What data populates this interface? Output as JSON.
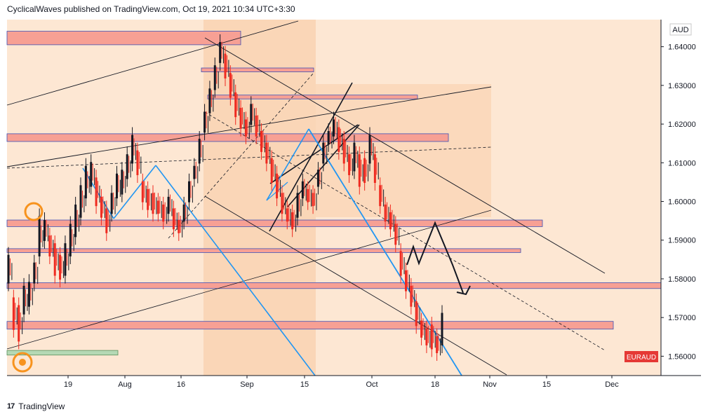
{
  "header": {
    "publisher": "CyclicalWaves published on TradingView.com, Oct 19, 2021 10:34 UTC+3:30"
  },
  "footer": {
    "brand": "TradingView"
  },
  "colors": {
    "bg_chart": "#fde7d3",
    "zone_fill": "#f8c8a0",
    "box_red": "#f7a094",
    "box_red_border": "#3f51b5",
    "box_green": "#b5d9b5",
    "candle_up": "#131722",
    "candle_down": "#ef2a20",
    "blue_line": "#2196f3",
    "orange_circle": "#f7931e",
    "symbol_badge": "#e53935"
  },
  "chart_data": {
    "type": "candlestick",
    "currency_label": "AUD",
    "symbol_badge": "EURAUD",
    "y_axis": {
      "min": 1.555,
      "max": 1.647,
      "ticks": [
        "1.64000",
        "1.63000",
        "1.62000",
        "1.61000",
        "1.60000",
        "1.59000",
        "1.58000",
        "1.57000",
        "1.56000"
      ]
    },
    "x_axis": {
      "ticks": [
        "19",
        "Aug",
        "16",
        "Sep",
        "15",
        "Oct",
        "18",
        "Nov",
        "15",
        "Dec"
      ]
    },
    "price_path": [
      [
        1.587,
        1.578
      ],
      [
        1.576,
        1.566
      ],
      [
        1.574,
        1.563
      ],
      [
        1.579,
        1.57
      ],
      [
        1.58,
        1.572
      ],
      [
        1.585,
        1.578
      ],
      [
        1.597,
        1.585
      ],
      [
        1.596,
        1.589
      ],
      [
        1.592,
        1.585
      ],
      [
        1.59,
        1.58
      ],
      [
        1.587,
        1.579
      ],
      [
        1.59,
        1.58
      ],
      [
        1.595,
        1.585
      ],
      [
        1.6,
        1.59
      ],
      [
        1.605,
        1.595
      ],
      [
        1.61,
        1.6
      ],
      [
        1.611,
        1.603
      ],
      [
        1.607,
        1.598
      ],
      [
        1.602,
        1.595
      ],
      [
        1.599,
        1.591
      ],
      [
        1.603,
        1.596
      ],
      [
        1.608,
        1.6
      ],
      [
        1.609,
        1.601
      ],
      [
        1.613,
        1.605
      ],
      [
        1.618,
        1.609
      ],
      [
        1.614,
        1.606
      ],
      [
        1.606,
        1.599
      ],
      [
        1.604,
        1.597
      ],
      [
        1.603,
        1.596
      ],
      [
        1.601,
        1.596
      ],
      [
        1.6,
        1.594
      ],
      [
        1.602,
        1.596
      ],
      [
        1.599,
        1.592
      ],
      [
        1.596,
        1.591
      ],
      [
        1.6,
        1.594
      ],
      [
        1.606,
        1.599
      ],
      [
        1.61,
        1.605
      ],
      [
        1.617,
        1.609
      ],
      [
        1.624,
        1.617
      ],
      [
        1.63,
        1.622
      ],
      [
        1.636,
        1.628
      ],
      [
        1.642,
        1.635
      ],
      [
        1.639,
        1.631
      ],
      [
        1.634,
        1.626
      ],
      [
        1.629,
        1.621
      ],
      [
        1.625,
        1.618
      ],
      [
        1.622,
        1.616
      ],
      [
        1.626,
        1.619
      ],
      [
        1.623,
        1.616
      ],
      [
        1.619,
        1.612
      ],
      [
        1.616,
        1.609
      ],
      [
        1.612,
        1.604
      ],
      [
        1.608,
        1.6
      ],
      [
        1.603,
        1.596
      ],
      [
        1.599,
        1.594
      ],
      [
        1.598,
        1.592
      ],
      [
        1.603,
        1.595
      ],
      [
        1.606,
        1.6
      ],
      [
        1.604,
        1.599
      ],
      [
        1.603,
        1.598
      ],
      [
        1.609,
        1.603
      ],
      [
        1.616,
        1.609
      ],
      [
        1.619,
        1.614
      ],
      [
        1.622,
        1.616
      ],
      [
        1.62,
        1.612
      ],
      [
        1.617,
        1.609
      ],
      [
        1.613,
        1.606
      ],
      [
        1.616,
        1.607
      ],
      [
        1.613,
        1.603
      ],
      [
        1.612,
        1.604
      ],
      [
        1.618,
        1.609
      ],
      [
        1.613,
        1.604
      ],
      [
        1.605,
        1.598
      ],
      [
        1.6,
        1.594
      ],
      [
        1.598,
        1.592
      ],
      [
        1.595,
        1.588
      ],
      [
        1.588,
        1.58
      ],
      [
        1.583,
        1.576
      ],
      [
        1.579,
        1.572
      ],
      [
        1.575,
        1.567
      ],
      [
        1.57,
        1.564
      ],
      [
        1.568,
        1.562
      ],
      [
        1.569,
        1.561
      ],
      [
        1.566,
        1.56
      ],
      [
        1.572,
        1.562
      ]
    ]
  }
}
